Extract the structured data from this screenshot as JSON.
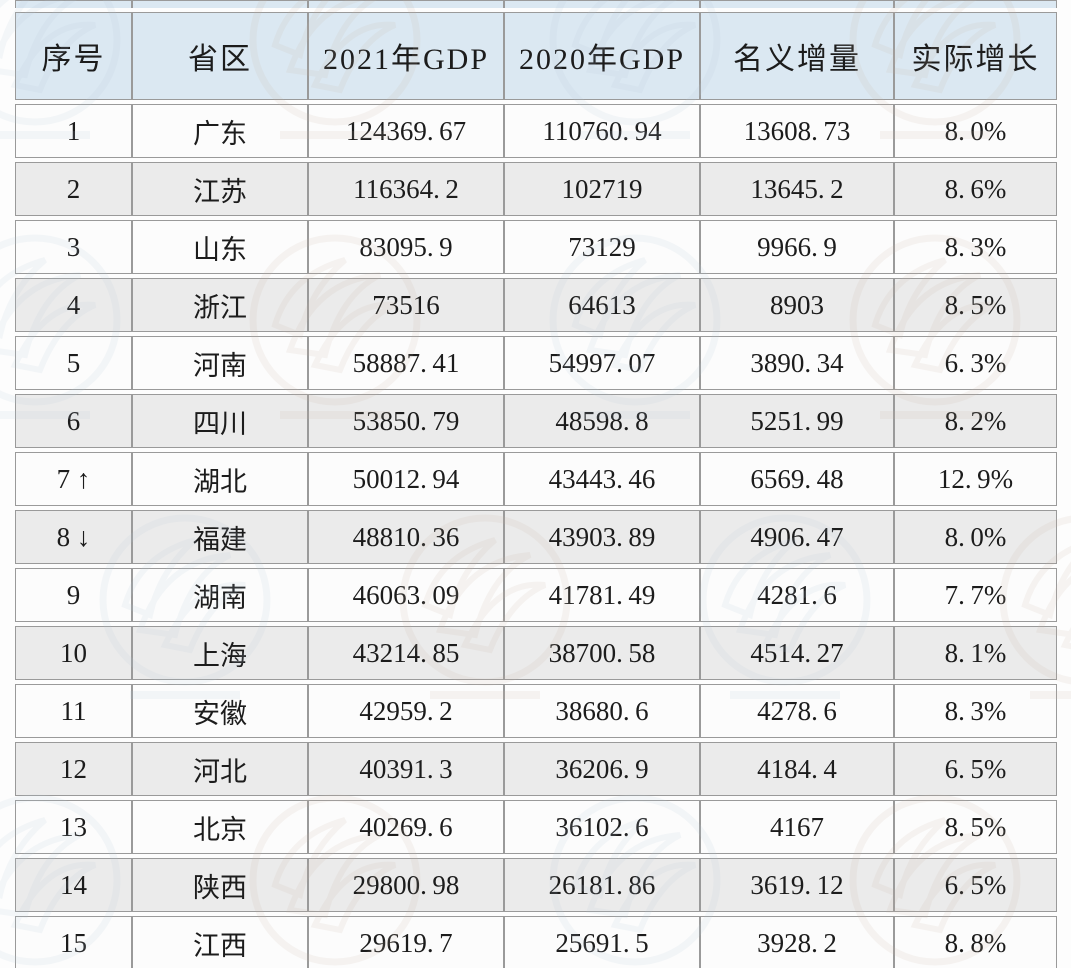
{
  "chart_data": {
    "type": "table",
    "title": "",
    "columns": [
      "序号",
      "省区",
      "2021年GDP",
      "2020年GDP",
      "名义增量",
      "实际增长"
    ],
    "rows": [
      [
        "1",
        "广东",
        "124369.67",
        "110760.94",
        "13608.73",
        "8.0%"
      ],
      [
        "2",
        "江苏",
        "116364.2",
        "102719",
        "13645.2",
        "8.6%"
      ],
      [
        "3",
        "山东",
        "83095.9",
        "73129",
        "9966.9",
        "8.3%"
      ],
      [
        "4",
        "浙江",
        "73516",
        "64613",
        "8903",
        "8.5%"
      ],
      [
        "5",
        "河南",
        "58887.41",
        "54997.07",
        "3890.34",
        "6.3%"
      ],
      [
        "6",
        "四川",
        "53850.79",
        "48598.8",
        "5251.99",
        "8.2%"
      ],
      [
        "7 ↑",
        "湖北",
        "50012.94",
        "43443.46",
        "6569.48",
        "12.9%"
      ],
      [
        "8 ↓",
        "福建",
        "48810.36",
        "43903.89",
        "4906.47",
        "8.0%"
      ],
      [
        "9",
        "湖南",
        "46063.09",
        "41781.49",
        "4281.6",
        "7.7%"
      ],
      [
        "10",
        "上海",
        "43214.85",
        "38700.58",
        "4514.27",
        "8.1%"
      ],
      [
        "11",
        "安徽",
        "42959.2",
        "38680.6",
        "4278.6",
        "8.3%"
      ],
      [
        "12",
        "河北",
        "40391.3",
        "36206.9",
        "4184.4",
        "6.5%"
      ],
      [
        "13",
        "北京",
        "40269.6",
        "36102.6",
        "4167",
        "8.5%"
      ],
      [
        "14",
        "陕西",
        "29800.98",
        "26181.86",
        "3619.12",
        "6.5%"
      ],
      [
        "15",
        "江西",
        "29619.7",
        "25691.5",
        "3928.2",
        "8.8%"
      ]
    ],
    "layout_hints": {
      "grid": true,
      "banded_rows": true,
      "rank_change_up_row": "7 ↑",
      "rank_change_down_row": "8 ↓"
    }
  },
  "colors": {
    "header_bg": "#dbe8f2",
    "row_bg": "#fcfcfc",
    "row_alt_bg": "#ebebeb",
    "border": "#9a9a9a",
    "text": "#1c1c1c",
    "page_bg": "#fdfdfd",
    "watermark_warm": "#c9b6a4",
    "watermark_cool": "#b7c9d9"
  },
  "icons": {
    "rank_up_icon": "↑",
    "rank_down_icon": "↓",
    "watermark_emblem": "circular-wave-logo-watermark"
  }
}
